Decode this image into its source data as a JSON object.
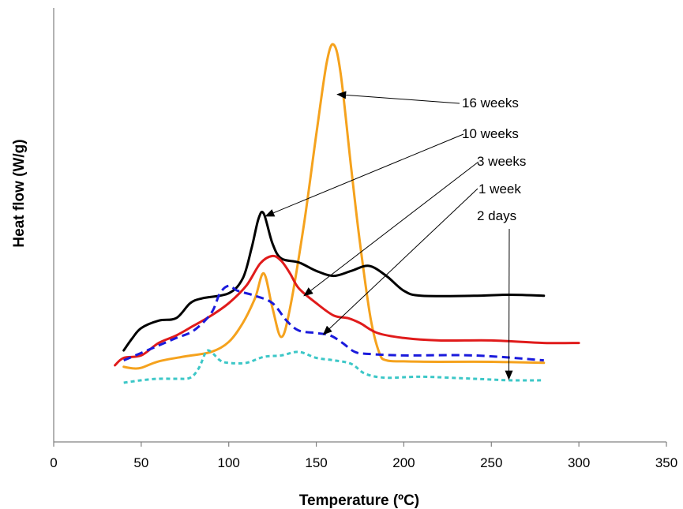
{
  "chart_data": {
    "type": "line",
    "xlabel": "Temperature (ºC)",
    "ylabel": "Heat flow (W/g)",
    "xlim": [
      0,
      350
    ],
    "x_ticks": [
      "0",
      "50",
      "100",
      "150",
      "200",
      "250",
      "300",
      "350"
    ],
    "y_ticks_shown": false,
    "grid": false,
    "legend": "none (series identified by arrow annotations)",
    "series": [
      {
        "name": "16 weeks",
        "color": "#f5a21d",
        "dash": "solid",
        "points": [
          [
            40,
            0.32
          ],
          [
            45,
            0.29
          ],
          [
            50,
            0.3
          ],
          [
            60,
            0.43
          ],
          [
            75,
            0.53
          ],
          [
            90,
            0.62
          ],
          [
            100,
            0.82
          ],
          [
            108,
            1.2
          ],
          [
            115,
            1.7
          ],
          [
            120,
            2.2
          ],
          [
            125,
            1.5
          ],
          [
            130,
            0.92
          ],
          [
            135,
            1.5
          ],
          [
            143,
            3.2
          ],
          [
            150,
            5.0
          ],
          [
            156,
            6.45
          ],
          [
            160,
            6.8
          ],
          [
            164,
            6.2
          ],
          [
            170,
            4.3
          ],
          [
            175,
            2.8
          ],
          [
            181,
            1.3
          ],
          [
            186,
            0.6
          ],
          [
            190,
            0.45
          ],
          [
            200,
            0.43
          ],
          [
            220,
            0.42
          ],
          [
            250,
            0.42
          ],
          [
            280,
            0.4
          ]
        ]
      },
      {
        "name": "10 weeks",
        "color": "#000000",
        "dash": "solid",
        "points": [
          [
            40,
            0.65
          ],
          [
            45,
            0.9
          ],
          [
            50,
            1.1
          ],
          [
            60,
            1.25
          ],
          [
            70,
            1.3
          ],
          [
            78,
            1.6
          ],
          [
            85,
            1.7
          ],
          [
            100,
            1.8
          ],
          [
            108,
            2.1
          ],
          [
            113,
            2.7
          ],
          [
            117,
            3.3
          ],
          [
            120,
            3.4
          ],
          [
            125,
            2.8
          ],
          [
            130,
            2.5
          ],
          [
            140,
            2.42
          ],
          [
            150,
            2.25
          ],
          [
            160,
            2.15
          ],
          [
            170,
            2.25
          ],
          [
            180,
            2.35
          ],
          [
            190,
            2.15
          ],
          [
            200,
            1.85
          ],
          [
            210,
            1.75
          ],
          [
            240,
            1.75
          ],
          [
            260,
            1.77
          ],
          [
            280,
            1.75
          ]
        ]
      },
      {
        "name": "3 weeks",
        "color": "#e01b1b",
        "dash": "solid",
        "points": [
          [
            35,
            0.35
          ],
          [
            40,
            0.5
          ],
          [
            50,
            0.55
          ],
          [
            60,
            0.8
          ],
          [
            70,
            0.95
          ],
          [
            80,
            1.15
          ],
          [
            90,
            1.35
          ],
          [
            100,
            1.6
          ],
          [
            110,
            1.95
          ],
          [
            118,
            2.4
          ],
          [
            125,
            2.55
          ],
          [
            130,
            2.45
          ],
          [
            135,
            2.2
          ],
          [
            140,
            1.9
          ],
          [
            150,
            1.6
          ],
          [
            160,
            1.35
          ],
          [
            168,
            1.3
          ],
          [
            175,
            1.2
          ],
          [
            185,
            1.0
          ],
          [
            200,
            0.9
          ],
          [
            220,
            0.85
          ],
          [
            250,
            0.85
          ],
          [
            280,
            0.8
          ],
          [
            300,
            0.8
          ]
        ]
      },
      {
        "name": "1 week",
        "color": "#1a1adc",
        "dash": "dashed",
        "points": [
          [
            40,
            0.45
          ],
          [
            50,
            0.6
          ],
          [
            60,
            0.75
          ],
          [
            70,
            0.9
          ],
          [
            80,
            1.05
          ],
          [
            90,
            1.4
          ],
          [
            95,
            1.8
          ],
          [
            100,
            1.95
          ],
          [
            105,
            1.85
          ],
          [
            115,
            1.75
          ],
          [
            125,
            1.6
          ],
          [
            133,
            1.25
          ],
          [
            140,
            1.05
          ],
          [
            150,
            1.0
          ],
          [
            158,
            0.95
          ],
          [
            165,
            0.8
          ],
          [
            172,
            0.62
          ],
          [
            180,
            0.58
          ],
          [
            200,
            0.55
          ],
          [
            240,
            0.55
          ],
          [
            280,
            0.45
          ]
        ]
      },
      {
        "name": "2 days",
        "color": "#3cc7c7",
        "dash": "dotted",
        "points": [
          [
            40,
            0.0
          ],
          [
            50,
            0.05
          ],
          [
            60,
            0.08
          ],
          [
            70,
            0.08
          ],
          [
            78,
            0.1
          ],
          [
            83,
            0.3
          ],
          [
            87,
            0.62
          ],
          [
            90,
            0.62
          ],
          [
            95,
            0.45
          ],
          [
            100,
            0.4
          ],
          [
            110,
            0.4
          ],
          [
            120,
            0.52
          ],
          [
            130,
            0.55
          ],
          [
            140,
            0.62
          ],
          [
            150,
            0.5
          ],
          [
            160,
            0.45
          ],
          [
            170,
            0.38
          ],
          [
            178,
            0.18
          ],
          [
            190,
            0.1
          ],
          [
            210,
            0.12
          ],
          [
            240,
            0.08
          ],
          [
            260,
            0.05
          ],
          [
            280,
            0.05
          ]
        ]
      }
    ],
    "annotations": [
      {
        "text": "16 weeks",
        "target_series": "16 weeks",
        "arrow_end": [
          162,
          5.8
        ]
      },
      {
        "text": "10 weeks",
        "target_series": "10 weeks",
        "arrow_end": [
          121,
          3.35
        ]
      },
      {
        "text": "3 weeks",
        "target_series": "3 weeks",
        "arrow_end": [
          143,
          1.75
        ]
      },
      {
        "text": "1 week",
        "target_series": "1 week",
        "arrow_end": [
          154,
          0.97
        ]
      },
      {
        "text": "2 days",
        "target_series": "2 days",
        "arrow_end": [
          260,
          0.07
        ]
      }
    ]
  }
}
